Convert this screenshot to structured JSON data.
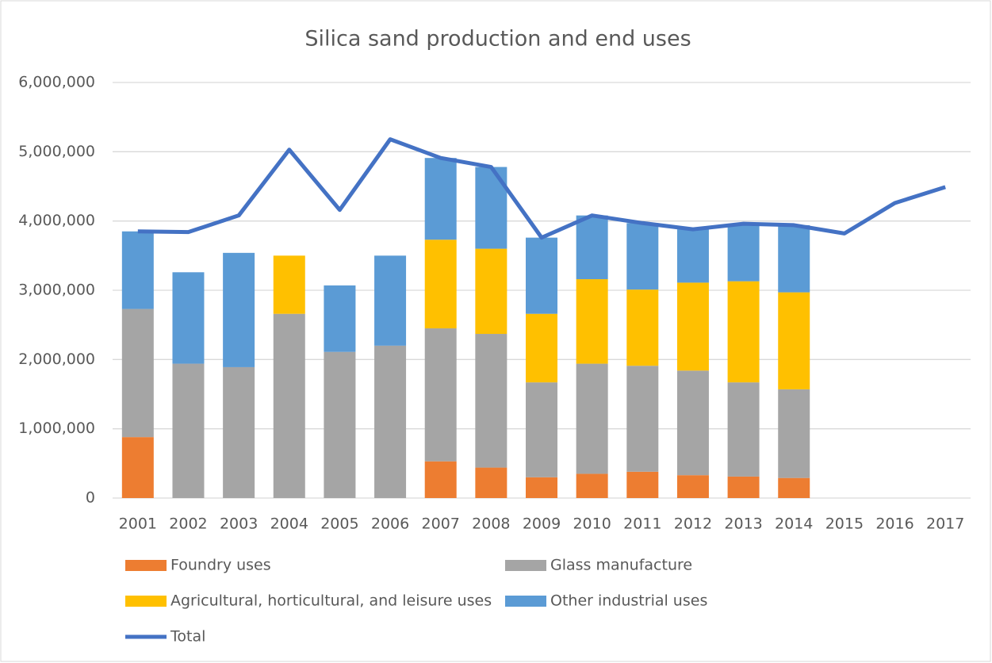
{
  "chart_data": {
    "type": "stacked_bar_line",
    "title": "Silica sand production and end uses",
    "categories": [
      "2001",
      "2002",
      "2003",
      "2004",
      "2005",
      "2006",
      "2007",
      "2008",
      "2009",
      "2010",
      "2011",
      "2012",
      "2013",
      "2014",
      "2015",
      "2016",
      "2017"
    ],
    "series": [
      {
        "name": "Foundry uses",
        "color": "#ed7d31",
        "values": [
          880000,
          null,
          null,
          null,
          null,
          null,
          530000,
          440000,
          300000,
          350000,
          380000,
          330000,
          310000,
          290000,
          null,
          null,
          null
        ]
      },
      {
        "name": "Glass manufacture",
        "color": "#a5a5a5",
        "values": [
          1850000,
          1940000,
          1890000,
          2660000,
          2110000,
          2200000,
          1920000,
          1930000,
          1370000,
          1590000,
          1530000,
          1510000,
          1360000,
          1280000,
          null,
          null,
          null
        ]
      },
      {
        "name": "Agricultural, horticultural, and leisure uses",
        "color": "#ffc000",
        "values": [
          null,
          null,
          null,
          840000,
          null,
          null,
          1280000,
          1230000,
          990000,
          1220000,
          1100000,
          1270000,
          1460000,
          1400000,
          null,
          null,
          null
        ]
      },
      {
        "name": "Other industrial uses",
        "color": "#5b9bd5",
        "values": [
          1120000,
          1320000,
          1650000,
          null,
          960000,
          1300000,
          1180000,
          1180000,
          1100000,
          920000,
          960000,
          770000,
          830000,
          970000,
          null,
          null,
          null
        ]
      },
      {
        "name": "Total",
        "color": "#4472c4",
        "type": "line",
        "values": [
          3850000,
          3840000,
          4080000,
          5030000,
          4160000,
          5180000,
          4910000,
          4780000,
          3760000,
          4080000,
          3970000,
          3880000,
          3960000,
          3940000,
          3820000,
          4260000,
          4490000
        ]
      }
    ],
    "ylim": [
      0,
      6000000
    ],
    "yticks": [
      0,
      {
        "value": 1000000,
        "label": "1,000,000"
      },
      {
        "value": 2000000,
        "label": "2,000,000"
      },
      {
        "value": 3000000,
        "label": "3,000,000"
      },
      {
        "value": 4000000,
        "label": "4,000,000"
      },
      {
        "value": 5000000,
        "label": "5,000,000"
      },
      {
        "value": 6000000,
        "label": "6,000,000"
      }
    ],
    "grid": true,
    "legend": "bottom"
  }
}
